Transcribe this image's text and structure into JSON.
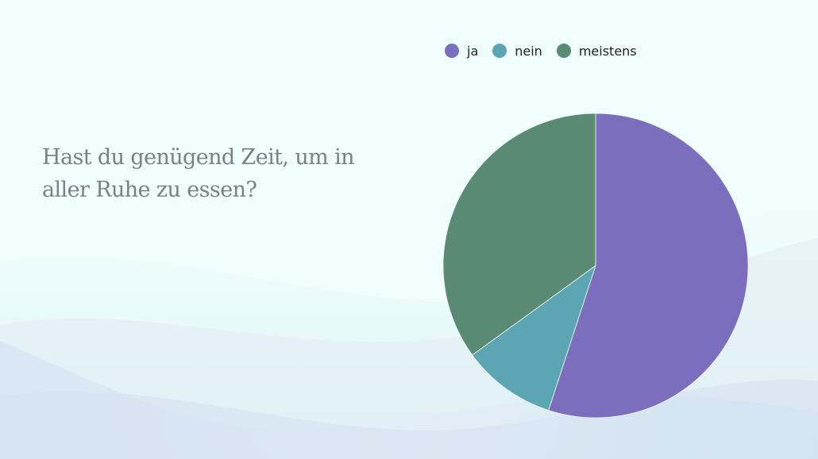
{
  "question": {
    "line1": "Hast du genügend Zeit, um in",
    "line2": "aller Ruhe zu essen?"
  },
  "colors": {
    "ja": "#7b6fbd",
    "nein": "#5ba6b2",
    "meistens": "#5a8a74",
    "background": "#effdfc"
  },
  "chart_data": {
    "type": "pie",
    "title": "",
    "legend_position": "top",
    "slices": [
      {
        "label": "ja",
        "value": 55,
        "color": "#7b6fbd"
      },
      {
        "label": "nein",
        "value": 10,
        "color": "#5ba6b2"
      },
      {
        "label": "meistens",
        "value": 35,
        "color": "#5a8a74"
      }
    ]
  }
}
